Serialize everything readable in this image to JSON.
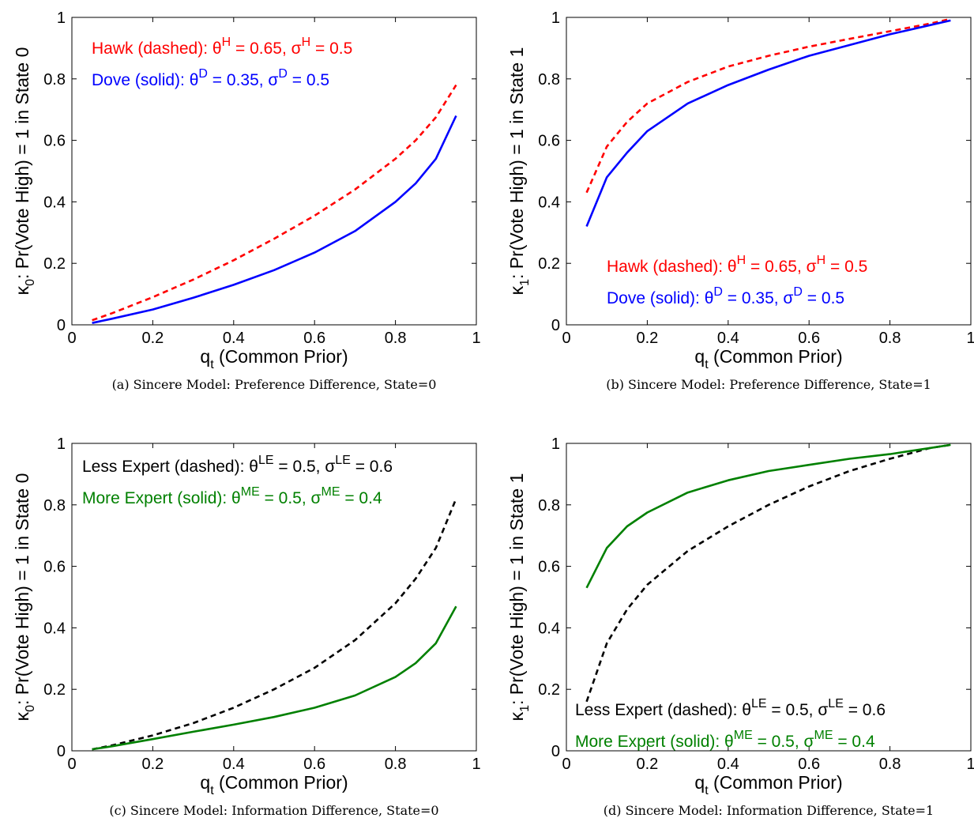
{
  "colors": {
    "hawk": "#ff0000",
    "dove": "#0000ff",
    "less_expert": "#000000",
    "more_expert": "#008000",
    "axis": "#000000"
  },
  "chart_data": [
    {
      "type": "line",
      "caption": "(a) Sincere Model: Preference Difference, State=0",
      "xlabel": "q",
      "xlabel_sub": "t",
      "xlabel_rest": " (Common Prior)",
      "ylabel_pre": "κ",
      "ylabel_sub": "0",
      "ylabel_rest": ": Pr(Vote High) = 1 in State 0",
      "xlim": [
        0,
        1
      ],
      "ylim": [
        0,
        1
      ],
      "xticks": [
        "0",
        "0.2",
        "0.4",
        "0.6",
        "0.8",
        "1"
      ],
      "yticks": [
        "0",
        "0.2",
        "0.4",
        "0.6",
        "0.8",
        "1"
      ],
      "legend_placement": "top-left",
      "legend": [
        {
          "prefix": "Hawk (dashed): θ",
          "sup1": "H",
          "mid": " = 0.65, σ",
          "sup2": "H",
          "suffix": " = 0.5",
          "color": "#ff0000"
        },
        {
          "prefix": "Dove (solid): θ",
          "sup1": "D",
          "mid": " = 0.35, σ",
          "sup2": "D",
          "suffix": " = 0.5",
          "color": "#0000ff"
        }
      ],
      "series": [
        {
          "style": "dashed",
          "color": "#ff0000",
          "x": [
            0.05,
            0.1,
            0.2,
            0.3,
            0.4,
            0.5,
            0.6,
            0.7,
            0.8,
            0.85,
            0.9,
            0.95
          ],
          "y": [
            0.015,
            0.038,
            0.09,
            0.147,
            0.21,
            0.28,
            0.355,
            0.44,
            0.54,
            0.6,
            0.675,
            0.78
          ]
        },
        {
          "style": "solid",
          "color": "#0000ff",
          "x": [
            0.05,
            0.1,
            0.2,
            0.3,
            0.4,
            0.5,
            0.6,
            0.7,
            0.8,
            0.85,
            0.9,
            0.95
          ],
          "y": [
            0.006,
            0.02,
            0.05,
            0.088,
            0.13,
            0.178,
            0.235,
            0.305,
            0.4,
            0.46,
            0.54,
            0.68
          ]
        }
      ]
    },
    {
      "type": "line",
      "caption": "(b) Sincere Model: Preference Difference, State=1",
      "xlabel": "q",
      "xlabel_sub": "t",
      "xlabel_rest": " (Common Prior)",
      "ylabel_pre": "κ",
      "ylabel_sub": "1",
      "ylabel_rest": ": Pr(Vote High) = 1 in State 1",
      "xlim": [
        0,
        1
      ],
      "ylim": [
        0,
        1
      ],
      "xticks": [
        "0",
        "0.2",
        "0.4",
        "0.6",
        "0.8",
        "1"
      ],
      "yticks": [
        "0",
        "0.2",
        "0.4",
        "0.6",
        "0.8",
        "1"
      ],
      "legend_placement": "bottom-right",
      "legend": [
        {
          "prefix": "Hawk (dashed): θ",
          "sup1": "H",
          "mid": " = 0.65, σ",
          "sup2": "H",
          "suffix": " = 0.5",
          "color": "#ff0000"
        },
        {
          "prefix": "Dove (solid): θ",
          "sup1": "D",
          "mid": " = 0.35, σ",
          "sup2": "D",
          "suffix": " = 0.5",
          "color": "#0000ff"
        }
      ],
      "series": [
        {
          "style": "dashed",
          "color": "#ff0000",
          "x": [
            0.05,
            0.1,
            0.15,
            0.2,
            0.3,
            0.4,
            0.5,
            0.6,
            0.7,
            0.8,
            0.9,
            0.95
          ],
          "y": [
            0.43,
            0.58,
            0.66,
            0.72,
            0.79,
            0.84,
            0.875,
            0.905,
            0.93,
            0.955,
            0.98,
            0.995
          ]
        },
        {
          "style": "solid",
          "color": "#0000ff",
          "x": [
            0.05,
            0.1,
            0.15,
            0.2,
            0.3,
            0.4,
            0.5,
            0.6,
            0.7,
            0.8,
            0.9,
            0.95
          ],
          "y": [
            0.32,
            0.48,
            0.56,
            0.63,
            0.72,
            0.78,
            0.83,
            0.875,
            0.91,
            0.945,
            0.975,
            0.99
          ]
        }
      ]
    },
    {
      "type": "line",
      "caption": "(c) Sincere Model: Information Difference, State=0",
      "xlabel": "q",
      "xlabel_sub": "t",
      "xlabel_rest": " (Common Prior)",
      "ylabel_pre": "κ",
      "ylabel_sub": "0",
      "ylabel_rest": ": Pr(Vote High) = 1 in State 0",
      "xlim": [
        0,
        1
      ],
      "ylim": [
        0,
        1
      ],
      "xticks": [
        "0",
        "0.2",
        "0.4",
        "0.6",
        "0.8",
        "1"
      ],
      "yticks": [
        "0",
        "0.2",
        "0.4",
        "0.6",
        "0.8",
        "1"
      ],
      "legend_placement": "top-left",
      "legend": [
        {
          "prefix": "Less Expert (dashed): θ",
          "sup1": "LE",
          "mid": " = 0.5, σ",
          "sup2": "LE",
          "suffix": " = 0.6",
          "color": "#000000"
        },
        {
          "prefix": "More Expert (solid): θ",
          "sup1": "ME",
          "mid": " = 0.5, σ",
          "sup2": "ME",
          "suffix": " = 0.4",
          "color": "#008000"
        }
      ],
      "series": [
        {
          "style": "dashed",
          "color": "#000000",
          "x": [
            0.05,
            0.1,
            0.2,
            0.3,
            0.4,
            0.5,
            0.6,
            0.7,
            0.8,
            0.85,
            0.9,
            0.95
          ],
          "y": [
            0.005,
            0.018,
            0.05,
            0.09,
            0.14,
            0.2,
            0.27,
            0.36,
            0.48,
            0.56,
            0.66,
            0.82
          ]
        },
        {
          "style": "solid",
          "color": "#008000",
          "x": [
            0.05,
            0.1,
            0.2,
            0.3,
            0.4,
            0.5,
            0.6,
            0.7,
            0.8,
            0.85,
            0.9,
            0.95
          ],
          "y": [
            0.005,
            0.015,
            0.038,
            0.062,
            0.085,
            0.11,
            0.14,
            0.18,
            0.24,
            0.285,
            0.35,
            0.47
          ]
        }
      ]
    },
    {
      "type": "line",
      "caption": "(d) Sincere Model: Information Difference, State=1",
      "xlabel": "q",
      "xlabel_sub": "t",
      "xlabel_rest": " (Common Prior)",
      "ylabel_pre": "κ",
      "ylabel_sub": "1",
      "ylabel_rest": ": Pr(Vote High) = 1 in State 1",
      "xlim": [
        0,
        1
      ],
      "ylim": [
        0,
        1
      ],
      "xticks": [
        "0",
        "0.2",
        "0.4",
        "0.6",
        "0.8",
        "1"
      ],
      "yticks": [
        "0",
        "0.2",
        "0.4",
        "0.6",
        "0.8",
        "1"
      ],
      "legend_placement": "bottom-right",
      "legend": [
        {
          "prefix": "Less Expert (dashed): θ",
          "sup1": "LE",
          "mid": " = 0.5, σ",
          "sup2": "LE",
          "suffix": " = 0.6",
          "color": "#000000"
        },
        {
          "prefix": "More Expert (solid): θ",
          "sup1": "ME",
          "mid": " = 0.5, σ",
          "sup2": "ME",
          "suffix": " = 0.4",
          "color": "#008000"
        }
      ],
      "series": [
        {
          "style": "dashed",
          "color": "#000000",
          "x": [
            0.05,
            0.1,
            0.15,
            0.2,
            0.3,
            0.4,
            0.5,
            0.6,
            0.7,
            0.8,
            0.9,
            0.95
          ],
          "y": [
            0.16,
            0.35,
            0.46,
            0.54,
            0.65,
            0.73,
            0.8,
            0.86,
            0.91,
            0.95,
            0.985,
            0.995
          ]
        },
        {
          "style": "solid",
          "color": "#008000",
          "x": [
            0.05,
            0.1,
            0.15,
            0.2,
            0.3,
            0.4,
            0.5,
            0.6,
            0.7,
            0.8,
            0.9,
            0.95
          ],
          "y": [
            0.53,
            0.66,
            0.73,
            0.775,
            0.84,
            0.88,
            0.91,
            0.93,
            0.95,
            0.965,
            0.985,
            0.995
          ]
        }
      ]
    }
  ]
}
